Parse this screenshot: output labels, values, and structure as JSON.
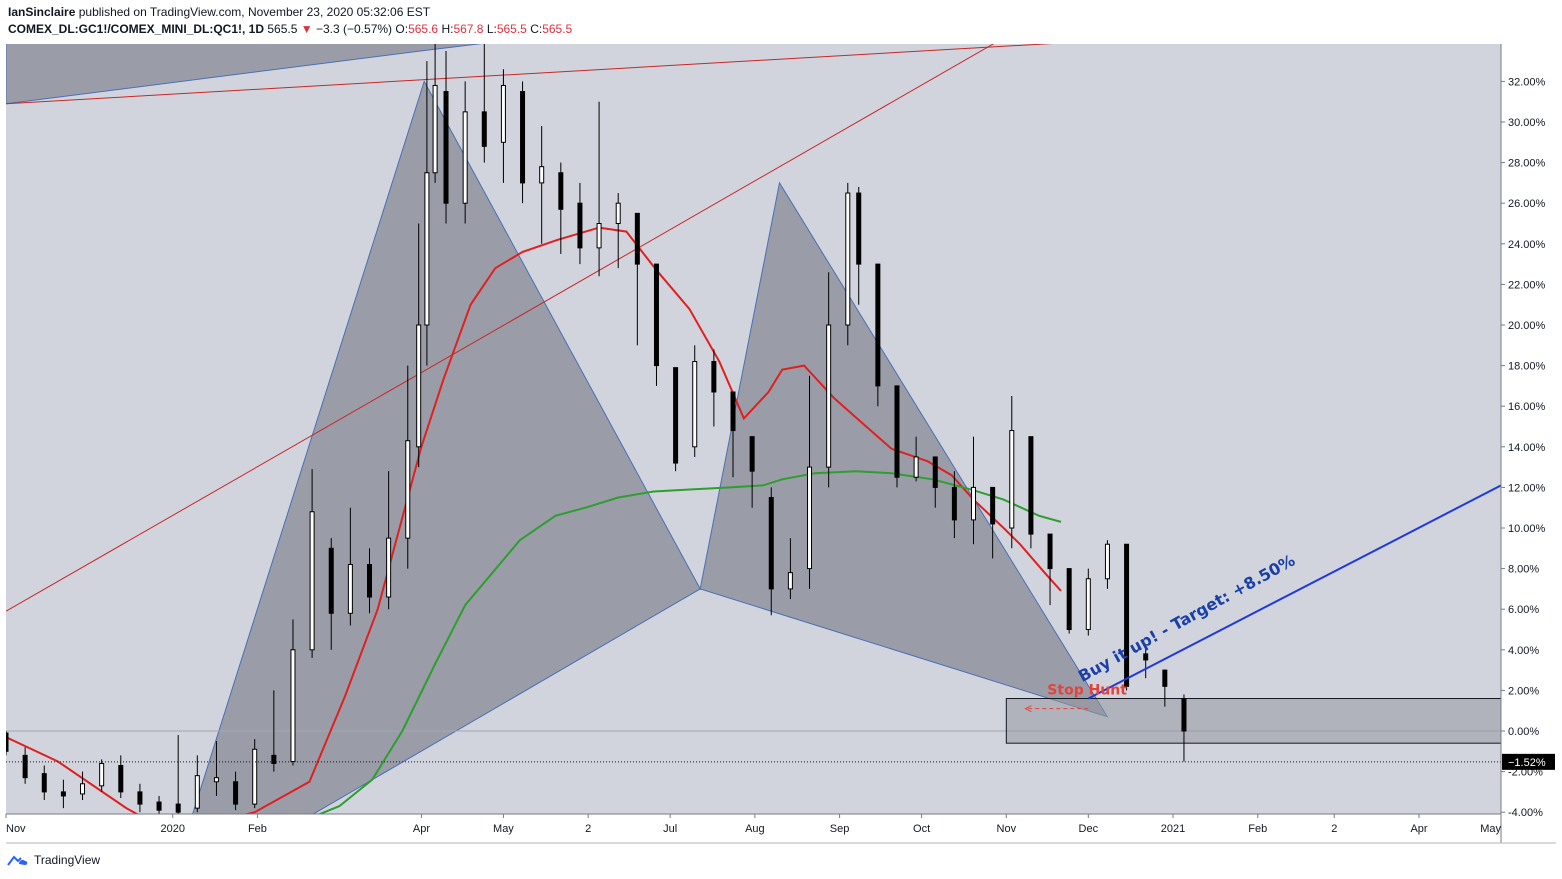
{
  "header": {
    "author": "IanSinclaire",
    "published_text": "published on TradingView.com, November 23, 2020 05:32:06 EST"
  },
  "ticker": {
    "symbol": "COMEX_DL:GC1!/COMEX_MINI_DL:QC1!, 1D",
    "last": "565.5",
    "change_arrow": "▼",
    "change": "−3.3 (−0.57%)",
    "o_label": "O:",
    "o_value": "565.6",
    "h_label": "H:",
    "h_value": "567.8",
    "l_label": "L:",
    "l_value": "565.5",
    "c_label": "C:",
    "c_value": "565.5"
  },
  "footer": {
    "brand": "TradingView",
    "logo_icon": "tradingview-logo-icon"
  },
  "colors": {
    "plot_bg": "#d1d4dc",
    "pattern_fill": "#787b86",
    "channel_red": "#c62828",
    "ma_red": "#e02020",
    "ma_green": "#2e9e2e",
    "target_line": "#1f3ad8",
    "annot_blue": "#1a3fa8",
    "stop_hunt": "#e8413a",
    "up_candle": "#ffffff",
    "down_candle": "#000000",
    "price_label_bg": "#000000"
  },
  "chart_data": {
    "type": "candlestick",
    "title": "",
    "y_unit": "%",
    "y_scale": "percentage",
    "ylim": [
      -4.2,
      34.2
    ],
    "y_ticks": [
      "32.00%",
      "30.00%",
      "28.00%",
      "26.00%",
      "24.00%",
      "22.00%",
      "20.00%",
      "18.00%",
      "16.00%",
      "14.00%",
      "12.00%",
      "10.00%",
      "8.00%",
      "6.00%",
      "4.00%",
      "2.00%",
      "0.00%",
      "-2.00%",
      "-4.00%"
    ],
    "y_tick_values": [
      32,
      30,
      28,
      26,
      24,
      22,
      20,
      18,
      16,
      14,
      12,
      10,
      8,
      6,
      4,
      2,
      0,
      -2,
      -4
    ],
    "x_ticks": [
      "Nov",
      "2020",
      "Feb",
      "Apr",
      "May",
      "2",
      "Jul",
      "Aug",
      "Sep",
      "Oct",
      "Nov",
      "Dec",
      "2021",
      "Feb",
      "2",
      "Apr",
      "May"
    ],
    "x_tick_dates": [
      "2019-11-01",
      "2020-01-01",
      "2020-02-01",
      "2020-04-01",
      "2020-05-01",
      "2020-06-01",
      "2020-07-01",
      "2020-08-01",
      "2020-09-01",
      "2020-10-01",
      "2020-11-01",
      "2020-12-01",
      "2021-01-01",
      "2021-02-01",
      "2021-03-01",
      "2021-04-01",
      "2021-05-01"
    ],
    "xlim": [
      "2019-11-01",
      "2021-05-01"
    ],
    "grid": false,
    "last_value_label": "−1.52%",
    "last_value": -1.52,
    "series": [
      {
        "name": "",
        "kind": "moving_average",
        "color": "red",
        "points": [
          [
            "2019-11-01",
            -0.3
          ],
          [
            "2019-11-20",
            -1.5
          ],
          [
            "2019-12-15",
            -3.8
          ],
          [
            "2019-12-31",
            -5.0
          ],
          [
            "2020-01-31",
            -4.0
          ],
          [
            "2020-02-20",
            -2.5
          ],
          [
            "2020-03-04",
            1.7
          ],
          [
            "2020-03-16",
            6.0
          ],
          [
            "2020-03-25",
            10.5
          ],
          [
            "2020-04-01",
            14.0
          ],
          [
            "2020-04-09",
            17.3
          ],
          [
            "2020-04-19",
            21.0
          ],
          [
            "2020-04-28",
            22.8
          ],
          [
            "2020-05-08",
            23.6
          ],
          [
            "2020-05-21",
            24.2
          ],
          [
            "2020-06-05",
            24.8
          ],
          [
            "2020-06-15",
            24.6
          ],
          [
            "2020-06-26",
            22.7
          ],
          [
            "2020-07-08",
            20.8
          ],
          [
            "2020-07-19",
            18.2
          ],
          [
            "2020-07-28",
            15.4
          ],
          [
            "2020-08-06",
            16.7
          ],
          [
            "2020-08-11",
            17.8
          ],
          [
            "2020-08-19",
            18.0
          ],
          [
            "2020-08-30",
            16.4
          ],
          [
            "2020-09-09",
            15.2
          ],
          [
            "2020-09-20",
            13.9
          ],
          [
            "2020-10-03",
            13.3
          ],
          [
            "2020-10-12",
            12.6
          ],
          [
            "2020-10-20",
            11.4
          ],
          [
            "2020-10-31",
            10.0
          ],
          [
            "2020-11-06",
            9.2
          ],
          [
            "2020-11-15",
            7.8
          ],
          [
            "2020-11-21",
            6.9
          ]
        ]
      },
      {
        "name": "",
        "kind": "moving_average",
        "color": "green",
        "points": [
          [
            "2020-02-20",
            -4.3
          ],
          [
            "2020-03-02",
            -3.7
          ],
          [
            "2020-03-14",
            -2.4
          ],
          [
            "2020-03-25",
            0.0
          ],
          [
            "2020-04-06",
            3.3
          ],
          [
            "2020-04-17",
            6.2
          ],
          [
            "2020-04-27",
            7.8
          ],
          [
            "2020-05-07",
            9.4
          ],
          [
            "2020-05-20",
            10.6
          ],
          [
            "2020-05-31",
            11.0
          ],
          [
            "2020-06-12",
            11.5
          ],
          [
            "2020-06-25",
            11.8
          ],
          [
            "2020-07-09",
            11.9
          ],
          [
            "2020-07-23",
            12.0
          ],
          [
            "2020-08-04",
            12.1
          ],
          [
            "2020-08-11",
            12.4
          ],
          [
            "2020-08-23",
            12.7
          ],
          [
            "2020-09-07",
            12.8
          ],
          [
            "2020-09-20",
            12.7
          ],
          [
            "2020-10-05",
            12.4
          ],
          [
            "2020-10-19",
            11.9
          ],
          [
            "2020-10-31",
            11.4
          ],
          [
            "2020-11-13",
            10.6
          ],
          [
            "2020-11-21",
            10.3
          ]
        ]
      }
    ],
    "candles": [
      [
        "2019-11-01",
        -0.1,
        -1.0,
        0.0,
        -1.2
      ],
      [
        "2019-11-08",
        -1.2,
        -2.3,
        -0.8,
        -2.6
      ],
      [
        "2019-11-15",
        -2.1,
        -3.0,
        -1.7,
        -3.4
      ],
      [
        "2019-11-22",
        -3.0,
        -3.2,
        -2.4,
        -3.8
      ],
      [
        "2019-11-29",
        -3.1,
        -2.6,
        -2.0,
        -3.4
      ],
      [
        "2019-12-06",
        -2.7,
        -1.6,
        -1.4,
        -3.0
      ],
      [
        "2019-12-13",
        -1.7,
        -3.0,
        -1.2,
        -3.3
      ],
      [
        "2019-12-20",
        -3.0,
        -3.6,
        -2.6,
        -4.0
      ],
      [
        "2019-12-27",
        -3.5,
        -3.9,
        -3.2,
        -4.1
      ],
      [
        "2020-01-03",
        -3.6,
        -4.0,
        -0.2,
        -4.1
      ],
      [
        "2020-01-10",
        -3.8,
        -2.2,
        -1.2,
        -4.0
      ],
      [
        "2020-01-17",
        -2.5,
        -2.3,
        -0.5,
        -3.2
      ],
      [
        "2020-01-24",
        -2.5,
        -3.6,
        -2.0,
        -3.9
      ],
      [
        "2020-01-31",
        -3.6,
        -0.9,
        -0.4,
        -3.8
      ],
      [
        "2020-02-07",
        -1.2,
        -1.6,
        2.0,
        -2.0
      ],
      [
        "2020-02-14",
        -1.5,
        4.0,
        5.5,
        -1.7
      ],
      [
        "2020-02-21",
        4.0,
        10.8,
        12.9,
        3.6
      ],
      [
        "2020-02-28",
        9.0,
        5.8,
        9.5,
        4.0
      ],
      [
        "2020-03-06",
        5.8,
        8.2,
        11.0,
        5.2
      ],
      [
        "2020-03-13",
        8.2,
        6.6,
        9.0,
        5.8
      ],
      [
        "2020-03-20",
        6.6,
        9.5,
        12.8,
        6.0
      ],
      [
        "2020-03-27",
        9.5,
        14.3,
        18.0,
        8.0
      ],
      [
        "2020-03-31",
        14.0,
        20.0,
        25.0,
        13.0
      ],
      [
        "2020-04-03",
        20.0,
        27.5,
        33.0,
        18.0
      ],
      [
        "2020-04-06",
        27.5,
        31.8,
        34.0,
        27.0
      ],
      [
        "2020-04-10",
        31.5,
        26.0,
        33.5,
        25.0
      ],
      [
        "2020-04-17",
        26.0,
        30.5,
        32.0,
        25.0
      ],
      [
        "2020-04-24",
        30.5,
        28.8,
        34.0,
        28.0
      ],
      [
        "2020-05-01",
        29.0,
        31.8,
        32.6,
        27.0
      ],
      [
        "2020-05-08",
        31.5,
        27.0,
        32.0,
        26.0
      ],
      [
        "2020-05-15",
        27.0,
        27.8,
        29.8,
        24.0
      ],
      [
        "2020-05-22",
        27.5,
        25.7,
        28.0,
        23.5
      ],
      [
        "2020-05-29",
        26.0,
        23.8,
        27.0,
        23.0
      ],
      [
        "2020-06-05",
        23.8,
        25.0,
        31.0,
        22.4
      ],
      [
        "2020-06-12",
        25.0,
        26.0,
        26.5,
        22.8
      ],
      [
        "2020-06-19",
        25.5,
        23.0,
        25.0,
        19.0
      ],
      [
        "2020-06-26",
        23.0,
        18.0,
        20.5,
        17.0
      ],
      [
        "2020-07-03",
        17.9,
        13.2,
        17.0,
        12.8
      ],
      [
        "2020-07-10",
        14.0,
        18.2,
        19.0,
        13.5
      ],
      [
        "2020-07-17",
        18.2,
        16.7,
        18.8,
        15.0
      ],
      [
        "2020-07-24",
        16.7,
        14.8,
        16.7,
        12.5
      ],
      [
        "2020-07-31",
        14.5,
        12.8,
        14.5,
        11.0
      ],
      [
        "2020-08-07",
        11.5,
        7.0,
        12.0,
        5.7
      ],
      [
        "2020-08-14",
        7.0,
        7.8,
        9.5,
        6.5
      ],
      [
        "2020-08-21",
        8.0,
        13.0,
        17.5,
        7.0
      ],
      [
        "2020-08-28",
        13.0,
        20.0,
        22.6,
        12.0
      ],
      [
        "2020-09-04",
        20.0,
        26.5,
        27.0,
        19.0
      ],
      [
        "2020-09-08",
        26.5,
        23.0,
        26.8,
        21.0
      ],
      [
        "2020-09-15",
        23.0,
        17.0,
        22.5,
        16.0
      ],
      [
        "2020-09-22",
        17.0,
        12.5,
        16.4,
        12.0
      ],
      [
        "2020-09-29",
        12.5,
        13.5,
        14.5,
        12.3
      ],
      [
        "2020-10-06",
        13.5,
        12.0,
        13.5,
        11.0
      ],
      [
        "2020-10-13",
        12.0,
        10.4,
        12.8,
        9.5
      ],
      [
        "2020-10-20",
        10.4,
        12.0,
        14.5,
        9.2
      ],
      [
        "2020-10-27",
        12.0,
        10.2,
        11.5,
        8.5
      ],
      [
        "2020-11-03",
        10.0,
        14.8,
        16.5,
        9.0
      ],
      [
        "2020-11-10",
        14.5,
        9.7,
        13.0,
        9.0
      ],
      [
        "2020-11-17",
        9.7,
        8.0,
        9.5,
        6.2
      ],
      [
        "2020-11-24",
        8.0,
        5.0,
        8.0,
        4.8
      ],
      [
        "2020-12-01",
        5.0,
        7.5,
        8.0,
        4.7
      ],
      [
        "2020-12-08",
        7.5,
        9.2,
        9.4,
        7.0
      ],
      [
        "2020-12-15",
        9.2,
        2.2,
        7.2,
        2.0
      ],
      [
        "2020-12-22",
        3.8,
        3.5,
        4.2,
        2.6
      ],
      [
        "2020-12-29",
        3.0,
        2.2,
        3.0,
        1.2
      ],
      [
        "2021-01-05",
        1.6,
        0.0,
        1.8,
        -1.5
      ]
    ],
    "drawings": {
      "shaded_regions": [
        {
          "points": [
            [
              "2019-11-01",
              30.9
            ],
            [
              "2020-04-01",
              33.5
            ],
            [
              "2020-12-31",
              38.0
            ],
            [
              "2019-11-01",
              38.0
            ]
          ]
        },
        {
          "points": [
            [
              "2020-01-08",
              -4.2
            ],
            [
              "2020-04-02",
              32.0
            ],
            [
              "2020-07-12",
              7.0
            ],
            [
              "2020-08-10",
              27.0
            ],
            [
              "2020-12-08",
              0.7
            ],
            [
              "2020-07-12",
              7.0
            ],
            [
              "2020-02-20",
              -4.2
            ]
          ]
        }
      ],
      "channel_lines": [
        {
          "from": [
            "2019-11-01",
            5.9
          ],
          "to": [
            "2021-03-01",
            43.5
          ]
        },
        {
          "from": [
            "2019-11-01",
            30.9
          ],
          "to": [
            "2020-12-31",
            34.2
          ]
        }
      ],
      "zone": {
        "from": "2020-11-01",
        "to": "2021-05-01",
        "top": 1.6,
        "bottom": -0.6
      },
      "target_line": {
        "from": [
          "2020-12-01",
          1.6
        ],
        "to": [
          "2021-05-01",
          12.1
        ]
      },
      "stop_arrow": {
        "from": [
          "2020-12-01",
          1.1
        ],
        "to": [
          "2020-11-08",
          1.1
        ]
      }
    },
    "annotations": [
      {
        "text": "Buy it up! - Target: +8.50%",
        "at": [
          "2020-12-01",
          2.2
        ]
      },
      {
        "text": "Stop Hunt",
        "at": [
          "2020-11-16",
          1.9
        ]
      }
    ]
  }
}
